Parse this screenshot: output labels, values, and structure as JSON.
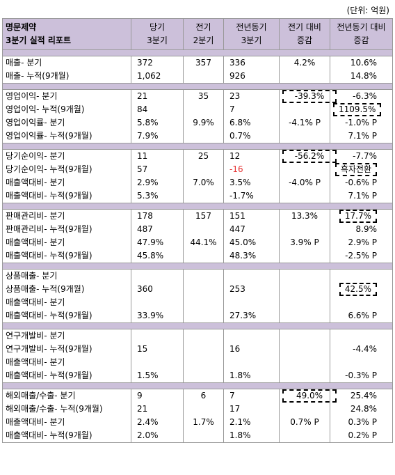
{
  "unit": "(단위: 억원)",
  "header": {
    "company": "명문제약",
    "report": "3분기 실적 리포트",
    "cols": [
      [
        "당기",
        "3분기"
      ],
      [
        "전기",
        "2분기"
      ],
      [
        "전년동기",
        "3분기"
      ],
      [
        "전기 대비",
        "증감"
      ],
      [
        "전년동기 대비",
        "증감"
      ]
    ]
  },
  "groups": [
    [
      [
        "매출- 분기",
        "372",
        "357",
        "336",
        "4.2%",
        "10.6%"
      ],
      [
        "매출- 누적(9개월)",
        "1,062",
        "",
        "926",
        "",
        "14.8%"
      ]
    ],
    [
      [
        "영업이익- 분기",
        "21",
        "35",
        "23",
        "-39.3%",
        "-6.3%"
      ],
      [
        "영업이익- 누적(9개월)",
        "84",
        "",
        "7",
        "",
        "1109.5%"
      ],
      [
        "영업이익률- 분기",
        "5.8%",
        "9.9%",
        "6.8%",
        "-4.1% P",
        "-1.0% P"
      ],
      [
        "영업이익률- 누적(9개월)",
        "7.9%",
        "",
        "0.7%",
        "",
        "7.1% P"
      ]
    ],
    [
      [
        "당기순이익- 분기",
        "11",
        "25",
        "12",
        "-56.2%",
        "-7.7%"
      ],
      [
        "당기순이익- 누적(9개월)",
        "57",
        "",
        "-16",
        "",
        "흑자전환"
      ],
      [
        "매출액대비- 분기",
        "2.9%",
        "7.0%",
        "3.5%",
        "-4.0% P",
        "-0.6% P"
      ],
      [
        "매출액대비- 누적(9개월)",
        "5.3%",
        "",
        "-1.7%",
        "",
        "7.1% P"
      ]
    ],
    [
      [
        "판매관리비- 분기",
        "178",
        "157",
        "151",
        "13.3%",
        "17.7%"
      ],
      [
        "판매관리비- 누적(9개월)",
        "487",
        "",
        "447",
        "",
        "8.9%"
      ],
      [
        "매출액대비- 분기",
        "47.9%",
        "44.1%",
        "45.0%",
        "3.9% P",
        "2.9% P"
      ],
      [
        "매출액대비- 누적(9개월)",
        "45.8%",
        "",
        "48.3%",
        "",
        "-2.5% P"
      ]
    ],
    [
      [
        "상품매출- 분기",
        "",
        "",
        "",
        "",
        ""
      ],
      [
        "상품매출- 누적(9개월)",
        "360",
        "",
        "253",
        "",
        "42.5%"
      ],
      [
        "매출액대비- 분기",
        "",
        "",
        "",
        "",
        ""
      ],
      [
        "매출액대비- 누적(9개월)",
        "33.9%",
        "",
        "27.3%",
        "",
        "6.6% P"
      ]
    ],
    [
      [
        "연구개발비- 분기",
        "",
        "",
        "",
        "",
        ""
      ],
      [
        "연구개발비- 누적(9개월)",
        "15",
        "",
        "16",
        "",
        "-4.4%"
      ],
      [
        "매출액대비- 분기",
        "",
        "",
        "",
        "",
        ""
      ],
      [
        "매출액대비- 누적(9개월)",
        "1.5%",
        "",
        "1.8%",
        "",
        "-0.3% P"
      ]
    ],
    [
      [
        "해외매출/수출- 분기",
        "9",
        "6",
        "7",
        "49.0%",
        "25.4%"
      ],
      [
        "해외매출/수출- 누적(9개월)",
        "21",
        "",
        "17",
        "",
        "24.8%"
      ],
      [
        "매출액대비- 분기",
        "2.4%",
        "1.7%",
        "2.1%",
        "0.7% P",
        "0.3% P"
      ],
      [
        "매출액대비- 누적(9개월)",
        "2.0%",
        "",
        "1.8%",
        "",
        "0.2% P"
      ]
    ]
  ],
  "highlights": [
    "1-0-4",
    "1-1-5",
    "2-0-4",
    "2-1-5",
    "3-0-5",
    "4-1-5",
    "6-0-4"
  ],
  "negative_color": "#e53333",
  "negative_cells": [
    "2-1-3"
  ]
}
